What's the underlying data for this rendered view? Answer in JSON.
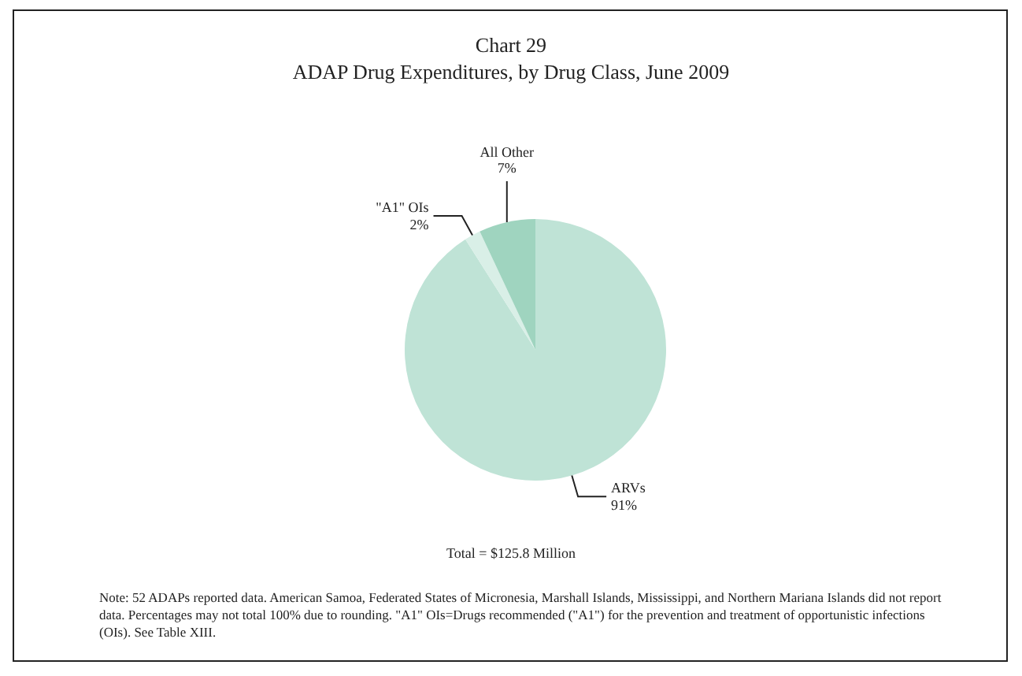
{
  "chart_data": {
    "type": "pie",
    "title": "Chart 29",
    "subtitle": "ADAP Drug Expenditures, by Drug Class, June 2009",
    "categories": [
      "ARVs",
      "\"A1\" OIs",
      "All Other"
    ],
    "values": [
      91,
      2,
      7
    ],
    "colors": [
      "#bfe3d6",
      "#d9efe7",
      "#9fd4bf"
    ],
    "value_labels": [
      "91%",
      "2%",
      "7%"
    ],
    "annotations": [
      "Total = $125.8 Million",
      "Note:  52 ADAPs reported data.  American Samoa, Federated States of Micronesia, Marshall Islands, Mississippi, and Northern Mariana Islands did not report data.  Percentages may not total 100% due to rounding.  \"A1\" OIs=Drugs recommended (\"A1\") for the prevention and treatment of opportunistic infections (OIs).  See Table XIII."
    ]
  }
}
